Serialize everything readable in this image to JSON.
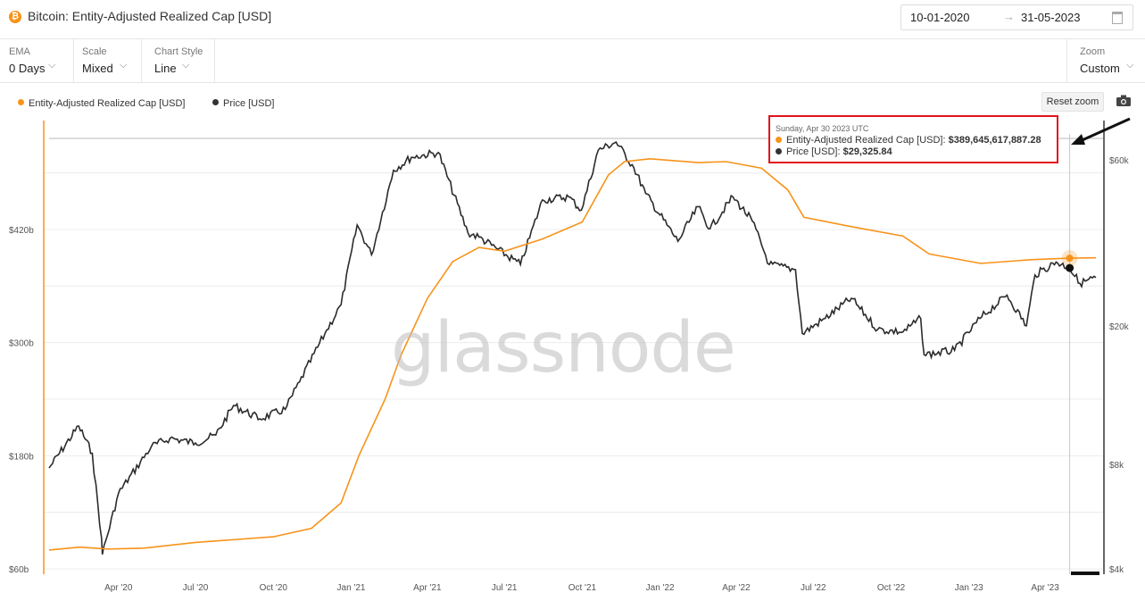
{
  "header": {
    "title": "Bitcoin: Entity-Adjusted Realized Cap [USD]",
    "icon": "bitcoin-icon",
    "date_from": "10-01-2020",
    "date_to": "31-05-2023",
    "date_arrow": "→"
  },
  "toolbar": {
    "ema_label": "EMA",
    "ema_value": "0 Days",
    "scale_label": "Scale",
    "scale_value": "Mixed",
    "style_label": "Chart Style",
    "style_value": "Line",
    "zoom_label": "Zoom",
    "zoom_value": "Custom",
    "reset_zoom": "Reset zoom"
  },
  "legend": {
    "realized": "Entity-Adjusted Realized Cap [USD]",
    "price": "Price [USD]"
  },
  "watermark": "glassnode",
  "tooltip": {
    "date": "Sunday, Apr 30 2023 UTC",
    "realized_label": "Entity-Adjusted Realized Cap [USD]:",
    "realized_value": "$389,645,617,887.28",
    "price_label": "Price [USD]:",
    "price_value": "$29,325.84"
  },
  "colors": {
    "realized": "#f7931a",
    "price": "#333333",
    "highlight": "#e1131b"
  },
  "chart_data": {
    "type": "line",
    "x_start": "2020-01-10",
    "x_end": "2023-05-31",
    "x_ticks": [
      "Apr '20",
      "Jul '20",
      "Oct '20",
      "Jan '21",
      "Apr '21",
      "Jul '21",
      "Oct '21",
      "Jan '22",
      "Apr '22",
      "Jul '22",
      "Oct '22",
      "Jan '23",
      "Apr '23"
    ],
    "left_axis": {
      "ticks": [
        "$60b",
        "$180b",
        "$300b",
        "$420b"
      ],
      "values": [
        60,
        180,
        300,
        420
      ],
      "unit": "USD billions",
      "scale": "linear",
      "range": [
        60,
        540
      ]
    },
    "right_axis": {
      "ticks": [
        "$4k",
        "$8k",
        "$20k",
        "$60k"
      ],
      "values": [
        4000,
        8000,
        20000,
        60000
      ],
      "unit": "USD",
      "scale": "log",
      "range": [
        4000,
        75000
      ]
    },
    "series": [
      {
        "name": "Entity-Adjusted Realized Cap [USD]",
        "axis": "left",
        "unit": "USD billions",
        "points": [
          [
            "2020-01-10",
            80
          ],
          [
            "2020-02-15",
            83
          ],
          [
            "2020-03-20",
            81
          ],
          [
            "2020-05-01",
            82
          ],
          [
            "2020-07-01",
            88
          ],
          [
            "2020-10-01",
            94
          ],
          [
            "2020-11-15",
            103
          ],
          [
            "2020-12-20",
            130
          ],
          [
            "2021-01-10",
            180
          ],
          [
            "2021-02-10",
            240
          ],
          [
            "2021-03-01",
            287
          ],
          [
            "2021-04-01",
            347
          ],
          [
            "2021-05-01",
            386
          ],
          [
            "2021-06-01",
            401
          ],
          [
            "2021-07-01",
            397
          ],
          [
            "2021-08-15",
            410
          ],
          [
            "2021-10-01",
            428
          ],
          [
            "2021-11-01",
            478
          ],
          [
            "2021-11-20",
            492
          ],
          [
            "2021-12-20",
            495
          ],
          [
            "2022-02-15",
            491
          ],
          [
            "2022-03-20",
            492
          ],
          [
            "2022-05-01",
            485
          ],
          [
            "2022-06-01",
            462
          ],
          [
            "2022-06-20",
            433
          ],
          [
            "2022-08-15",
            423
          ],
          [
            "2022-10-15",
            413
          ],
          [
            "2022-11-15",
            394
          ],
          [
            "2023-01-15",
            384
          ],
          [
            "2023-03-15",
            388
          ],
          [
            "2023-04-30",
            389.6
          ],
          [
            "2023-05-31",
            390
          ]
        ]
      },
      {
        "name": "Price [USD]",
        "axis": "right",
        "unit": "USD",
        "points": [
          [
            "2020-01-10",
            7800
          ],
          [
            "2020-02-14",
            10300
          ],
          [
            "2020-03-01",
            8600
          ],
          [
            "2020-03-12",
            4900
          ],
          [
            "2020-03-13",
            4400
          ],
          [
            "2020-04-01",
            6600
          ],
          [
            "2020-05-10",
            9000
          ],
          [
            "2020-06-01",
            9500
          ],
          [
            "2020-07-01",
            9200
          ],
          [
            "2020-07-25",
            9700
          ],
          [
            "2020-08-15",
            11800
          ],
          [
            "2020-09-15",
            10800
          ],
          [
            "2020-10-15",
            11500
          ],
          [
            "2020-11-01",
            13800
          ],
          [
            "2020-12-01",
            19000
          ],
          [
            "2020-12-20",
            23000
          ],
          [
            "2021-01-08",
            39000
          ],
          [
            "2021-01-25",
            32000
          ],
          [
            "2021-02-20",
            56000
          ],
          [
            "2021-03-13",
            61000
          ],
          [
            "2021-04-14",
            63000
          ],
          [
            "2021-05-19",
            37000
          ],
          [
            "2021-06-01",
            36000
          ],
          [
            "2021-07-20",
            30000
          ],
          [
            "2021-08-15",
            46000
          ],
          [
            "2021-09-15",
            47000
          ],
          [
            "2021-09-30",
            43000
          ],
          [
            "2021-10-20",
            64000
          ],
          [
            "2021-11-10",
            67500
          ],
          [
            "2021-12-01",
            57000
          ],
          [
            "2021-12-15",
            48000
          ],
          [
            "2022-01-22",
            35000
          ],
          [
            "2022-02-15",
            44000
          ],
          [
            "2022-03-01",
            38000
          ],
          [
            "2022-03-28",
            47000
          ],
          [
            "2022-04-20",
            40000
          ],
          [
            "2022-05-10",
            30000
          ],
          [
            "2022-06-10",
            29000
          ],
          [
            "2022-06-18",
            19000
          ],
          [
            "2022-07-15",
            21000
          ],
          [
            "2022-08-15",
            24000
          ],
          [
            "2022-09-15",
            19500
          ],
          [
            "2022-10-15",
            19200
          ],
          [
            "2022-11-05",
            21000
          ],
          [
            "2022-11-09",
            16500
          ],
          [
            "2022-12-15",
            17000
          ],
          [
            "2023-01-14",
            21000
          ],
          [
            "2023-02-15",
            24500
          ],
          [
            "2023-03-10",
            20000
          ],
          [
            "2023-03-20",
            28000
          ],
          [
            "2023-04-14",
            30500
          ],
          [
            "2023-04-30",
            29325.84
          ],
          [
            "2023-05-12",
            26500
          ],
          [
            "2023-05-31",
            27500
          ]
        ]
      }
    ],
    "highlight_date": "2023-04-30",
    "grid": true,
    "legend_position": "top-left"
  }
}
